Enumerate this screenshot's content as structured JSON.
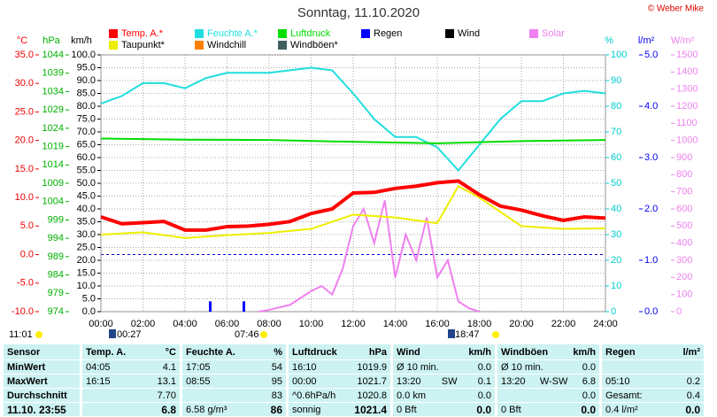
{
  "chart_data": {
    "type": "line",
    "title": "Sonntag, 11.10.2020",
    "credit": "© Weber Mike",
    "xlim": [
      0,
      24
    ],
    "xticks": [
      {
        "value": 0,
        "label": "00:00"
      },
      {
        "value": 2,
        "label": "02:00"
      },
      {
        "value": 4,
        "label": "04:00"
      },
      {
        "value": 6,
        "label": "06:00"
      },
      {
        "value": 8,
        "label": "08:00"
      },
      {
        "value": 10,
        "label": "10:00"
      },
      {
        "value": 12,
        "label": "12:00"
      },
      {
        "value": 14,
        "label": "14:00"
      },
      {
        "value": 16,
        "label": "16:00"
      },
      {
        "value": 18,
        "label": "18:00"
      },
      {
        "value": 20,
        "label": "20:00"
      },
      {
        "value": 22,
        "label": "22:00"
      },
      {
        "value": 24,
        "label": "24:00"
      }
    ],
    "grid": true,
    "axes": [
      {
        "label": "°C",
        "color": "#ee0000",
        "lim": [
          -10,
          35
        ],
        "ticks": [
          {
            "value": 35,
            "label": "35.0"
          },
          {
            "value": 30,
            "label": "30.0"
          },
          {
            "value": 25,
            "label": "25.0"
          },
          {
            "value": 20,
            "label": "20.0"
          },
          {
            "value": 15,
            "label": "15.0"
          },
          {
            "value": 10,
            "label": "10.0"
          },
          {
            "value": 5,
            "label": "5.0"
          },
          {
            "value": 0,
            "label": "0.0"
          },
          {
            "value": -5,
            "label": "-5.0"
          },
          {
            "value": -10,
            "label": "-10.0"
          }
        ]
      },
      {
        "label": "hPa",
        "color": "#00b000",
        "lim": [
          974,
          1044
        ],
        "ticks": [
          1044,
          1039,
          1034,
          1029,
          1024,
          1019,
          1014,
          1009,
          1004,
          999,
          994,
          989,
          984,
          979,
          974
        ]
      },
      {
        "label": "km/h",
        "color": "#000000",
        "lim": [
          0,
          100
        ],
        "ticks": [
          {
            "value": 100,
            "label": "100.0"
          },
          {
            "value": 95,
            "label": "95.0"
          },
          {
            "value": 90,
            "label": "90.0"
          },
          {
            "value": 85,
            "label": "85.0"
          },
          {
            "value": 80,
            "label": "80.0"
          },
          {
            "value": 75,
            "label": "75.0"
          },
          {
            "value": 70,
            "label": "70.0"
          },
          {
            "value": 65,
            "label": "65.0"
          },
          {
            "value": 60,
            "label": "60.0"
          },
          {
            "value": 55,
            "label": "55.0"
          },
          {
            "value": 50,
            "label": "50.0"
          },
          {
            "value": 45,
            "label": "45.0"
          },
          {
            "value": 40,
            "label": "40.0"
          },
          {
            "value": 35,
            "label": "35.0"
          },
          {
            "value": 30,
            "label": "30.0"
          },
          {
            "value": 25,
            "label": "25.0"
          },
          {
            "value": 20,
            "label": "20.0"
          },
          {
            "value": 15,
            "label": "15.0"
          },
          {
            "value": 10,
            "label": "10.0"
          },
          {
            "value": 5,
            "label": "5.0"
          },
          {
            "value": 0,
            "label": "0.0"
          }
        ]
      },
      {
        "label": "%",
        "color": "#00cccc",
        "lim": [
          0,
          100
        ],
        "ticks": [
          100,
          90,
          80,
          70,
          60,
          50,
          40,
          30,
          20,
          10,
          0
        ]
      },
      {
        "label": "l/m²",
        "color": "#0000ee",
        "lim": [
          0,
          5
        ],
        "ticks": [
          {
            "value": 5,
            "label": "5.0"
          },
          {
            "value": 4,
            "label": "4.0"
          },
          {
            "value": 3,
            "label": "3.0"
          },
          {
            "value": 2,
            "label": "2.0"
          },
          {
            "value": 1,
            "label": "1.0"
          },
          {
            "value": 0,
            "label": "0.0"
          }
        ]
      },
      {
        "label": "W/m²",
        "color": "#ee82ee",
        "lim": [
          0,
          1500
        ],
        "ticks": [
          1500,
          1400,
          1300,
          1200,
          1100,
          1000,
          900,
          800,
          700,
          600,
          500,
          400,
          300,
          200,
          100,
          0
        ]
      }
    ],
    "series": [
      {
        "name": "Temp. A.*",
        "color": "#ff0000",
        "axis": 0,
        "x": [
          0,
          1,
          2,
          3,
          4,
          5,
          6,
          7,
          8,
          9,
          10,
          11,
          12,
          13,
          14,
          15,
          16,
          17,
          18,
          19,
          20,
          21,
          22,
          23,
          24
        ],
        "values": [
          6.6,
          5.4,
          5.6,
          5.8,
          4.3,
          4.3,
          4.9,
          5.0,
          5.3,
          5.8,
          7.2,
          8.0,
          10.8,
          10.9,
          11.6,
          12.0,
          12.6,
          12.9,
          10.5,
          8.5,
          7.8,
          6.8,
          6.0,
          6.6,
          6.4
        ]
      },
      {
        "name": "Feuchte A.*",
        "color": "#22dddd",
        "axis": 3,
        "x": [
          0,
          1,
          2,
          3,
          4,
          5,
          6,
          7,
          8,
          9,
          10,
          11,
          12,
          13,
          14,
          15,
          16,
          17,
          18,
          19,
          20,
          21,
          22,
          23,
          24
        ],
        "values": [
          81,
          84,
          89,
          89,
          87,
          91,
          93,
          93,
          93,
          94,
          95,
          94,
          85,
          75,
          68,
          68,
          64,
          55,
          65,
          75,
          82,
          82,
          85,
          86,
          85
        ]
      },
      {
        "name": "Luftdruck",
        "color": "#00dd00",
        "axis": 1,
        "x": [
          0,
          4,
          8,
          12,
          16,
          20,
          24
        ],
        "values": [
          1021.2,
          1020.9,
          1020.8,
          1020.3,
          1019.9,
          1020.5,
          1020.8
        ]
      },
      {
        "name": "Regen",
        "color": "#0000ff",
        "axis": 4,
        "type": "bar",
        "x": [
          5.2,
          6.8
        ],
        "values": [
          0.2,
          0.2
        ]
      },
      {
        "name": "Wind",
        "color": "#000000"
      },
      {
        "name": "Solar",
        "color": "#f080f0",
        "axis": 5,
        "x": [
          7.5,
          8,
          9,
          10,
          10.5,
          11,
          11.5,
          12,
          12.5,
          13,
          13.5,
          14,
          14.5,
          15,
          15.5,
          16,
          16.5,
          17,
          17.5,
          18
        ],
        "values": [
          0,
          10,
          40,
          120,
          150,
          100,
          250,
          500,
          600,
          400,
          650,
          200,
          450,
          300,
          550,
          200,
          300,
          60,
          20,
          0
        ]
      },
      {
        "name": "Taupunkt*",
        "color": "#eeee00",
        "axis": 0,
        "x": [
          0,
          2,
          4,
          6,
          8,
          10,
          12,
          14,
          16,
          17,
          18,
          20,
          22,
          24
        ],
        "values": [
          3.5,
          3.9,
          2.9,
          3.4,
          3.8,
          4.5,
          7.0,
          6.5,
          5.5,
          12.0,
          10.0,
          5.0,
          4.5,
          4.6
        ]
      },
      {
        "name": "Windchill",
        "color": "#ff8000"
      },
      {
        "name": "Windböen*",
        "color": "#406060"
      }
    ],
    "astro": [
      "11:01",
      "00:27",
      "07:46",
      "18:47"
    ]
  },
  "table": {
    "headers": [
      [
        "Sensor"
      ],
      [
        "Temp. A.",
        "°C"
      ],
      [
        "Feuchte A.",
        "%"
      ],
      [
        "Luftdruck",
        "hPa"
      ],
      [
        "Wind",
        "km/h"
      ],
      [
        "Windböen",
        "km/h"
      ],
      [
        "Regen",
        "l/m²"
      ]
    ],
    "rows": [
      [
        [
          "MinWert"
        ],
        [
          "04:05",
          "4.1"
        ],
        [
          "17:05",
          "54"
        ],
        [
          "16:10",
          "1019.9"
        ],
        [
          "Ø 10 min.",
          "0.0"
        ],
        [
          "Ø 10 min.",
          "0.0"
        ],
        []
      ],
      [
        [
          "MaxWert"
        ],
        [
          "16:15",
          "13.1"
        ],
        [
          "08:55",
          "95"
        ],
        [
          "00:00",
          "1021.7"
        ],
        [
          "13:20",
          "SW",
          "0.1"
        ],
        [
          "13:20",
          "W-SW",
          "6.8"
        ],
        [
          "05:10",
          "0.2"
        ]
      ],
      [
        [
          "Durchschnitt"
        ],
        [
          "7.70"
        ],
        [
          "83"
        ],
        [
          "^0.6hPa/h",
          "1020.8"
        ],
        [
          "0.0 km",
          "0.0"
        ],
        [
          "0.0"
        ],
        [
          "Gesamt:",
          "0.4"
        ]
      ],
      [
        [
          "11.10. 23:55"
        ],
        [
          "6.8"
        ],
        [
          "6.58 g/m³",
          "86"
        ],
        [
          "sonnig",
          "1021.4"
        ],
        [
          "0 Bft",
          "0.0"
        ],
        [
          "0 Bft",
          "0.0"
        ],
        [
          "0.4 l/m²",
          "0.0"
        ]
      ]
    ]
  }
}
